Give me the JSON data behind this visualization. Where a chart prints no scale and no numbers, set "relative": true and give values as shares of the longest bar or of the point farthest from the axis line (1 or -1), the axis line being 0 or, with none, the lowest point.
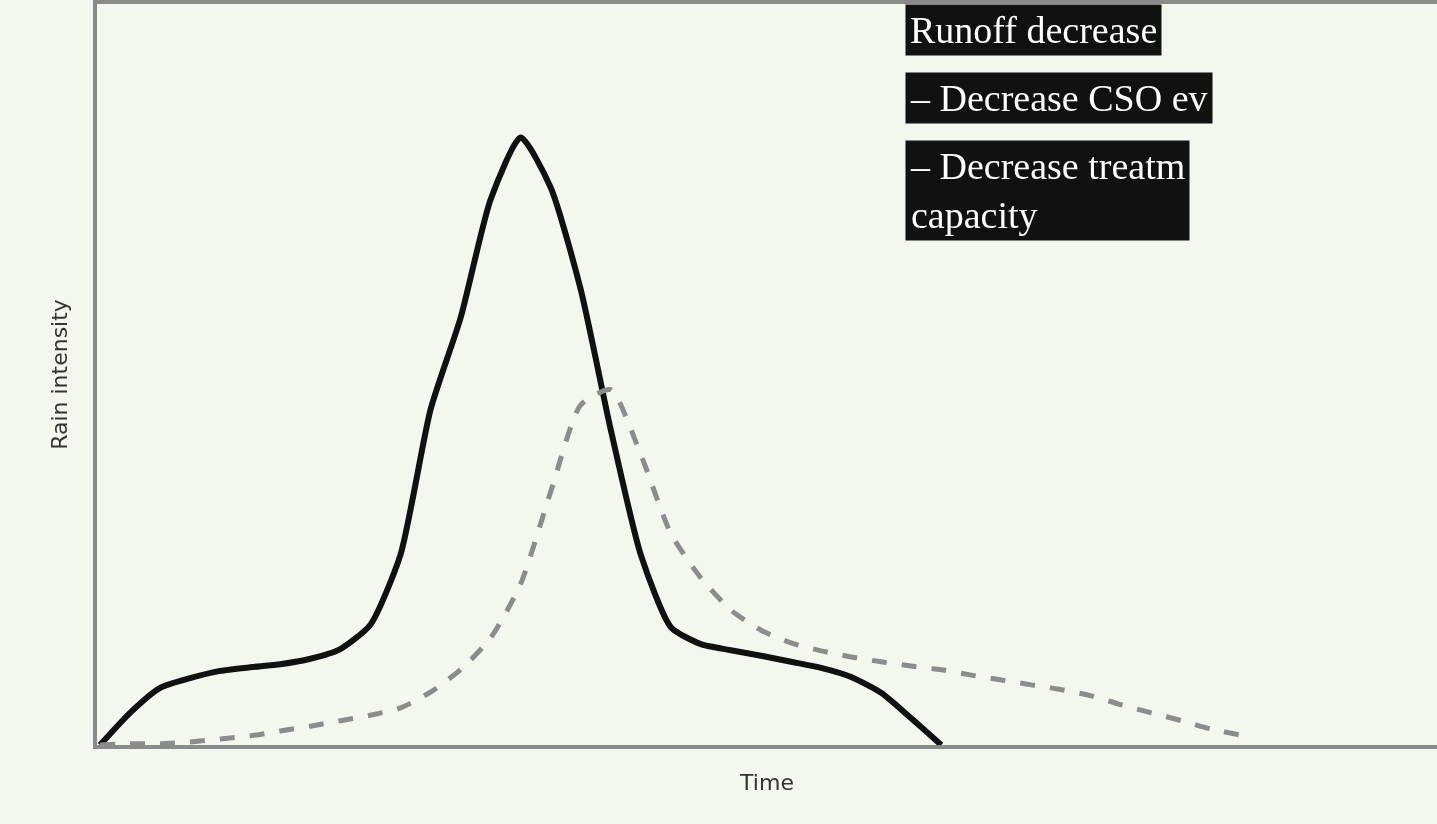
{
  "chart_data": {
    "type": "line",
    "relative": true,
    "xlabel": "Time",
    "ylabel": "Rain intensity",
    "tick_labels": false,
    "categories": [
      null,
      null,
      null,
      null,
      null,
      null,
      null,
      null,
      null,
      null,
      null,
      null,
      null,
      null,
      null,
      null,
      null,
      null,
      null,
      null,
      null,
      null,
      null,
      null,
      null,
      null,
      null,
      null,
      null,
      null,
      null,
      null,
      null,
      null,
      null,
      null,
      null,
      null,
      null,
      null,
      null,
      null,
      null,
      null,
      null
    ],
    "series": [
      {
        "color": "#111111",
        "line_style": "solid",
        "values": [
          0,
          0.053,
          0.094,
          0.11,
          0.122,
          0.128,
          0.133,
          0.142,
          0.158,
          0.198,
          0.313,
          0.552,
          0.703,
          0.898,
          1,
          0.918,
          0.75,
          0.519,
          0.313,
          0.194,
          0.166,
          0.156,
          0.147,
          0.137,
          0.127,
          0.112,
          0.086,
          0.044,
          0,
          null,
          null,
          null,
          null,
          null,
          null,
          null,
          null,
          null,
          null,
          null,
          null,
          null,
          null,
          null,
          null
        ]
      },
      {
        "color": "#8c8c8c",
        "line_style": "dashed",
        "values": [
          0,
          0.002,
          0.002,
          0.005,
          0.01,
          0.015,
          0.023,
          0.031,
          0.04,
          0.049,
          0.061,
          0.087,
          0.124,
          0.176,
          0.265,
          0.417,
          0.56,
          0.585,
          0.478,
          0.348,
          0.275,
          0.222,
          0.189,
          0.168,
          0.155,
          0.145,
          0.137,
          0.13,
          0.124,
          0.115,
          0.107,
          0.099,
          0.091,
          0.081,
          0.066,
          0.053,
          0.04,
          0.026,
          0.016,
          null,
          null,
          null,
          null,
          null,
          null
        ]
      }
    ],
    "annotations": [
      "Runoff decrease",
      "– Decrease CSO ev",
      "– Decrease treatm\ncapacity"
    ]
  }
}
